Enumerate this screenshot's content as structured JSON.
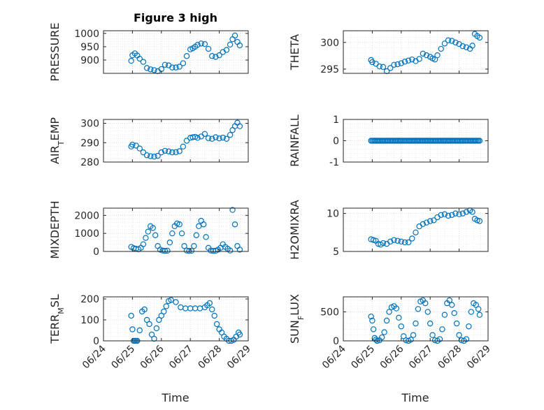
{
  "figure": {
    "title": "Figure 3 high",
    "marker_color": "#0072BD",
    "grid": "dotted",
    "shared_xlabel": "Time"
  },
  "chart_data": [
    {
      "type": "scatter",
      "ylabel": "PRESSURE",
      "ylabel_sub": null,
      "ylim": [
        850,
        1010
      ],
      "yticks": [
        900,
        950,
        1000
      ],
      "xlim": [
        "06/24",
        "06/29"
      ],
      "xticks": [
        "06/24",
        "06/25",
        "06/26",
        "06/27",
        "06/28",
        "06/29"
      ],
      "x": [
        "06/24 23:00",
        "06/25 00:00",
        "06/25 02:00",
        "06/25 04:00",
        "06/25 06:00",
        "06/25 09:00",
        "06/25 12:00",
        "06/25 15:00",
        "06/25 18:00",
        "06/25 21:00",
        "06/26 00:00",
        "06/26 03:00",
        "06/26 06:00",
        "06/26 09:00",
        "06/26 12:00",
        "06/26 15:00",
        "06/26 18:00",
        "06/26 21:00",
        "06/27 00:00",
        "06/27 02:00",
        "06/27 04:00",
        "06/27 06:00",
        "06/27 09:00",
        "06/27 12:00",
        "06/27 15:00",
        "06/27 18:00",
        "06/27 21:00",
        "06/28 00:00",
        "06/28 03:00",
        "06/28 06:00",
        "06/28 09:00",
        "06/28 11:00",
        "06/28 13:00",
        "06/28 15:00",
        "06/28 17:00"
      ],
      "y": [
        897,
        918,
        925,
        917,
        905,
        893,
        870,
        865,
        862,
        858,
        866,
        882,
        880,
        872,
        872,
        875,
        888,
        915,
        940,
        944,
        950,
        957,
        962,
        960,
        942,
        915,
        912,
        918,
        930,
        938,
        958,
        978,
        992,
        968,
        955
      ]
    },
    {
      "type": "scatter",
      "ylabel": "THETA",
      "ylabel_sub": null,
      "ylim": [
        294.2,
        302.2
      ],
      "yticks": [
        295,
        300
      ],
      "xlim": [
        "06/24",
        "06/29"
      ],
      "xticks": [
        "06/24",
        "06/25",
        "06/26",
        "06/27",
        "06/28",
        "06/29"
      ],
      "x": [
        "06/24 23:00",
        "06/25 00:00",
        "06/25 03:00",
        "06/25 06:00",
        "06/25 09:00",
        "06/25 12:00",
        "06/25 15:00",
        "06/25 18:00",
        "06/25 21:00",
        "06/26 00:00",
        "06/26 03:00",
        "06/26 06:00",
        "06/26 09:00",
        "06/26 12:00",
        "06/26 15:00",
        "06/26 18:00",
        "06/26 21:00",
        "06/27 00:00",
        "06/27 02:00",
        "06/27 04:00",
        "06/27 06:00",
        "06/27 09:00",
        "06/27 12:00",
        "06/27 15:00",
        "06/27 18:00",
        "06/27 21:00",
        "06/28 00:00",
        "06/28 03:00",
        "06/28 06:00",
        "06/28 09:00",
        "06/28 11:00",
        "06/28 13:00",
        "06/28 15:00",
        "06/28 17:00"
      ],
      "y": [
        296.7,
        296.3,
        296.0,
        295.5,
        295.4,
        294.6,
        295.2,
        295.8,
        295.9,
        296.1,
        296.4,
        296.6,
        296.8,
        296.5,
        296.9,
        297.9,
        297.6,
        297.3,
        297.0,
        296.8,
        297.6,
        298.8,
        299.8,
        300.4,
        300.3,
        300.0,
        299.7,
        299.3,
        299.1,
        298.8,
        299.4,
        301.6,
        301.2,
        300.9
      ]
    },
    {
      "type": "scatter",
      "ylabel": "AIR",
      "ylabel_sub": "T",
      "ylabel_rest": "EMP",
      "ylim": [
        280,
        302
      ],
      "yticks": [
        280,
        290,
        300
      ],
      "xlim": [
        "06/24",
        "06/29"
      ],
      "xticks": [
        "06/24",
        "06/25",
        "06/26",
        "06/27",
        "06/28",
        "06/29"
      ],
      "x": [
        "06/24 23:00",
        "06/25 00:00",
        "06/25 03:00",
        "06/25 06:00",
        "06/25 09:00",
        "06/25 12:00",
        "06/25 15:00",
        "06/25 18:00",
        "06/25 21:00",
        "06/26 00:00",
        "06/26 03:00",
        "06/26 06:00",
        "06/26 09:00",
        "06/26 12:00",
        "06/26 15:00",
        "06/26 18:00",
        "06/26 21:00",
        "06/27 00:00",
        "06/27 02:00",
        "06/27 04:00",
        "06/27 06:00",
        "06/27 09:00",
        "06/27 12:00",
        "06/27 15:00",
        "06/27 18:00",
        "06/27 21:00",
        "06/28 00:00",
        "06/28 03:00",
        "06/28 06:00",
        "06/28 09:00",
        "06/28 11:00",
        "06/28 13:00",
        "06/28 15:00",
        "06/28 17:00"
      ],
      "y": [
        288,
        289,
        288.5,
        287,
        285,
        283.5,
        283,
        282.8,
        283.2,
        285,
        285.8,
        285.5,
        285,
        285.1,
        285.6,
        288,
        291,
        292.5,
        292.8,
        293,
        292.5,
        293.2,
        294.5,
        292.3,
        292,
        292.8,
        292.2,
        292.6,
        292,
        294,
        296.5,
        298.5,
        300.3,
        298.5
      ]
    },
    {
      "type": "scatter",
      "ylabel": "RAINFALL",
      "ylabel_sub": null,
      "ylim": [
        -1,
        1
      ],
      "yticks": [
        -1,
        0,
        1
      ],
      "xlim": [
        "06/24",
        "06/29"
      ],
      "xticks": [
        "06/24",
        "06/25",
        "06/26",
        "06/27",
        "06/28",
        "06/29"
      ],
      "x_start": "06/24 23:00",
      "x_end": "06/28 17:00",
      "y_constant": 0
    },
    {
      "type": "scatter",
      "ylabel": "MIXDEPTH",
      "ylabel_sub": null,
      "ylim": [
        0,
        2400
      ],
      "yticks": [
        0,
        1000,
        2000
      ],
      "xlim": [
        "06/24",
        "06/29"
      ],
      "xticks": [
        "06/24",
        "06/25",
        "06/26",
        "06/27",
        "06/28",
        "06/29"
      ],
      "x": [
        "06/24 23:00",
        "06/25 01:00",
        "06/25 03:00",
        "06/25 05:00",
        "06/25 07:00",
        "06/25 09:00",
        "06/25 11:00",
        "06/25 13:00",
        "06/25 15:00",
        "06/25 17:00",
        "06/25 19:00",
        "06/25 21:00",
        "06/25 23:00",
        "06/26 01:00",
        "06/26 03:00",
        "06/26 05:00",
        "06/26 07:00",
        "06/26 09:00",
        "06/26 11:00",
        "06/26 13:00",
        "06/26 15:00",
        "06/26 17:00",
        "06/26 19:00",
        "06/26 21:00",
        "06/26 23:00",
        "06/27 01:00",
        "06/27 03:00",
        "06/27 05:00",
        "06/27 07:00",
        "06/27 09:00",
        "06/27 11:00",
        "06/27 13:00",
        "06/27 15:00",
        "06/27 17:00",
        "06/27 19:00",
        "06/27 21:00",
        "06/27 23:00",
        "06/28 01:00",
        "06/28 03:00",
        "06/28 05:00",
        "06/28 07:00",
        "06/28 09:00",
        "06/28 11:00",
        "06/28 13:00",
        "06/28 15:00",
        "06/28 17:00"
      ],
      "y": [
        250,
        180,
        150,
        120,
        200,
        400,
        750,
        1100,
        1400,
        1300,
        900,
        300,
        100,
        50,
        30,
        40,
        500,
        1000,
        1400,
        1550,
        1500,
        1000,
        300,
        50,
        30,
        40,
        300,
        900,
        1400,
        1700,
        1500,
        800,
        200,
        50,
        30,
        40,
        100,
        200,
        400,
        250,
        150,
        50,
        2300,
        1500,
        300,
        100
      ]
    },
    {
      "type": "scatter",
      "ylabel": "H2OMIXRA",
      "ylabel_sub": null,
      "ylim": [
        5,
        10.7
      ],
      "yticks": [
        5,
        10
      ],
      "xlim": [
        "06/24",
        "06/29"
      ],
      "xticks": [
        "06/24",
        "06/25",
        "06/26",
        "06/27",
        "06/28",
        "06/29"
      ],
      "x": [
        "06/24 23:00",
        "06/25 01:00",
        "06/25 03:00",
        "06/25 05:00",
        "06/25 07:00",
        "06/25 09:00",
        "06/25 12:00",
        "06/25 15:00",
        "06/25 18:00",
        "06/25 21:00",
        "06/26 00:00",
        "06/26 03:00",
        "06/26 06:00",
        "06/26 09:00",
        "06/26 12:00",
        "06/26 15:00",
        "06/26 18:00",
        "06/26 21:00",
        "06/27 00:00",
        "06/27 03:00",
        "06/27 06:00",
        "06/27 09:00",
        "06/27 12:00",
        "06/27 15:00",
        "06/27 18:00",
        "06/27 21:00",
        "06/28 00:00",
        "06/28 03:00",
        "06/28 06:00",
        "06/28 09:00",
        "06/28 11:00",
        "06/28 13:00",
        "06/28 15:00",
        "06/28 17:00"
      ],
      "y": [
        6.6,
        6.5,
        6.4,
        6.0,
        5.9,
        6.1,
        6.0,
        6.3,
        6.5,
        6.4,
        6.3,
        6.2,
        6.2,
        6.7,
        7.5,
        8.3,
        8.6,
        8.8,
        9.0,
        9.1,
        9.5,
        9.8,
        9.9,
        9.7,
        9.8,
        10.0,
        9.9,
        10.0,
        10.2,
        10.4,
        10.2,
        9.3,
        9.1,
        9.0
      ]
    },
    {
      "type": "scatter",
      "ylabel": "TERR",
      "ylabel_sub": "M",
      "ylabel_rest": "SL",
      "ylim": [
        0,
        210
      ],
      "yticks": [
        0,
        100,
        200
      ],
      "xlim": [
        "06/24",
        "06/29"
      ],
      "xticks": [
        "06/24",
        "06/25",
        "06/26",
        "06/27",
        "06/28",
        "06/29"
      ],
      "x": [
        "06/24 23:00",
        "06/25 00:00",
        "06/25 01:00",
        "06/25 02:00",
        "06/25 03:00",
        "06/25 04:00",
        "06/25 06:00",
        "06/25 08:00",
        "06/25 10:00",
        "06/25 12:00",
        "06/25 14:00",
        "06/25 16:00",
        "06/25 18:00",
        "06/25 20:00",
        "06/25 22:00",
        "06/26 00:00",
        "06/26 02:00",
        "06/26 04:00",
        "06/26 06:00",
        "06/26 08:00",
        "06/26 12:00",
        "06/26 16:00",
        "06/26 20:00",
        "06/27 00:00",
        "06/27 04:00",
        "06/27 08:00",
        "06/27 12:00",
        "06/27 14:00",
        "06/27 16:00",
        "06/27 18:00",
        "06/27 20:00",
        "06/27 22:00",
        "06/28 00:00",
        "06/28 02:00",
        "06/28 04:00",
        "06/28 06:00",
        "06/28 08:00",
        "06/28 10:00",
        "06/28 12:00",
        "06/28 14:00",
        "06/28 16:00",
        "06/28 17:00"
      ],
      "y": [
        120,
        55,
        0,
        0,
        0,
        0,
        50,
        140,
        150,
        100,
        80,
        30,
        10,
        60,
        100,
        120,
        140,
        165,
        190,
        195,
        185,
        160,
        155,
        155,
        155,
        155,
        160,
        170,
        180,
        150,
        120,
        80,
        55,
        40,
        20,
        10,
        0,
        0,
        5,
        20,
        40,
        30
      ]
    },
    {
      "type": "scatter",
      "ylabel": "SUN",
      "ylabel_sub": "F",
      "ylabel_rest": "LUX",
      "ylim": [
        0,
        760
      ],
      "yticks": [
        0,
        500
      ],
      "xlim": [
        "06/24",
        "06/29"
      ],
      "xticks": [
        "06/24",
        "06/25",
        "06/26",
        "06/27",
        "06/28",
        "06/29"
      ],
      "x": [
        "06/24 23:00",
        "06/25 00:00",
        "06/25 01:00",
        "06/25 02:00",
        "06/25 03:00",
        "06/25 04:00",
        "06/25 06:00",
        "06/25 08:00",
        "06/25 10:00",
        "06/25 12:00",
        "06/25 14:00",
        "06/25 16:00",
        "06/25 18:00",
        "06/25 20:00",
        "06/25 22:00",
        "06/26 00:00",
        "06/26 02:00",
        "06/26 04:00",
        "06/26 06:00",
        "06/26 08:00",
        "06/26 10:00",
        "06/26 12:00",
        "06/26 14:00",
        "06/26 16:00",
        "06/26 18:00",
        "06/26 20:00",
        "06/26 22:00",
        "06/27 00:00",
        "06/27 02:00",
        "06/27 04:00",
        "06/27 06:00",
        "06/27 08:00",
        "06/27 10:00",
        "06/27 12:00",
        "06/27 14:00",
        "06/27 16:00",
        "06/27 18:00",
        "06/27 20:00",
        "06/27 22:00",
        "06/28 00:00",
        "06/28 02:00",
        "06/28 04:00",
        "06/28 06:00",
        "06/28 08:00",
        "06/28 10:00",
        "06/28 12:00",
        "06/28 14:00",
        "06/28 16:00",
        "06/28 17:00"
      ],
      "y": [
        420,
        350,
        200,
        50,
        20,
        0,
        10,
        60,
        150,
        350,
        500,
        580,
        600,
        560,
        400,
        250,
        80,
        10,
        0,
        20,
        100,
        300,
        550,
        680,
        700,
        650,
        500,
        300,
        100,
        10,
        0,
        30,
        200,
        450,
        650,
        700,
        620,
        480,
        300,
        100,
        10,
        0,
        30,
        250,
        500,
        650,
        620,
        550,
        450
      ]
    }
  ]
}
